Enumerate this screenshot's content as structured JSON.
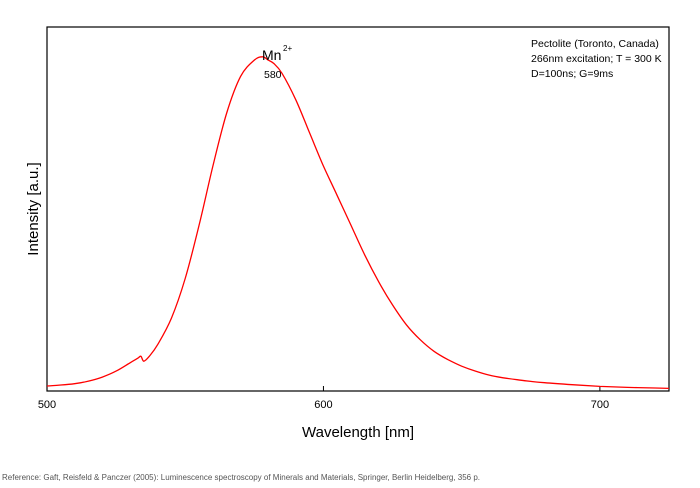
{
  "chart_data": {
    "type": "line",
    "xlabel": "Wavelength [nm]",
    "ylabel": "Intensity [a.u.]",
    "xlim": [
      500,
      725
    ],
    "ylim": [
      0,
      1.1
    ],
    "x_ticks": [
      500,
      600,
      700
    ],
    "y_ticks_labeled": false,
    "grid": false,
    "annotation_lines": [
      "Pectolite (Toronto, Canada)",
      "266nm excitation; T = 300 K",
      "D=100ns; G=9ms"
    ],
    "annotation_position": "top-right",
    "peak_label": {
      "ion": "Mn",
      "charge": "2+",
      "value": "580",
      "x": 580
    },
    "line_color": "#ff0000",
    "series": [
      {
        "x": [
          500,
          505,
          510,
          515,
          520,
          525,
          530,
          532,
          533,
          534,
          535,
          537,
          540,
          545,
          550,
          555,
          560,
          565,
          570,
          575,
          578,
          580,
          582,
          585,
          590,
          595,
          600,
          605,
          610,
          615,
          620,
          625,
          630,
          635,
          640,
          645,
          650,
          655,
          660,
          665,
          670,
          675,
          680,
          690,
          700,
          710,
          720,
          725
        ],
        "y": [
          0.015,
          0.018,
          0.022,
          0.03,
          0.042,
          0.06,
          0.085,
          0.095,
          0.1,
          0.105,
          0.09,
          0.105,
          0.14,
          0.22,
          0.34,
          0.5,
          0.68,
          0.84,
          0.95,
          1.0,
          1.01,
          1.0,
          0.99,
          0.96,
          0.88,
          0.78,
          0.68,
          0.59,
          0.5,
          0.41,
          0.33,
          0.26,
          0.2,
          0.155,
          0.12,
          0.095,
          0.075,
          0.06,
          0.048,
          0.04,
          0.034,
          0.029,
          0.025,
          0.019,
          0.014,
          0.011,
          0.009,
          0.008
        ]
      }
    ]
  },
  "reference": "Reference: Gaft, Reisfeld & Panczer (2005): Luminescence spectroscopy of Minerals and Materials, Springer, Berlin Heidelberg, 356 p."
}
